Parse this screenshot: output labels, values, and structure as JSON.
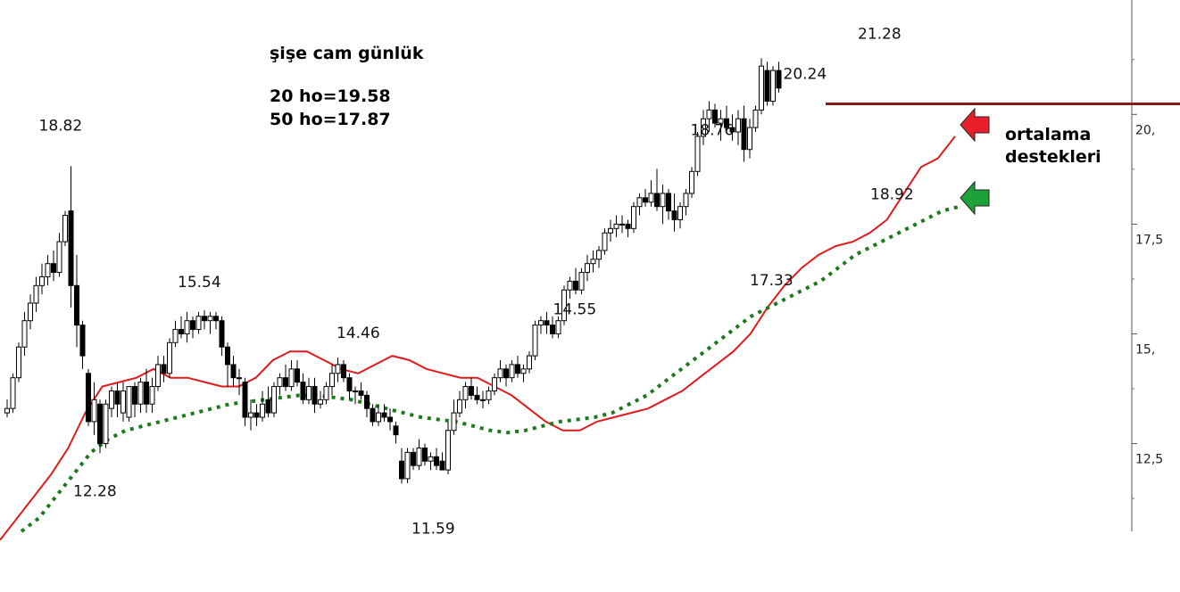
{
  "chart_data": {
    "type": "candlestick",
    "title": "şişe cam günlük",
    "annotations_top": [
      "20 ho=19.58",
      "50 ho=17.87"
    ],
    "note_lines": [
      "ortalama",
      "destekleri"
    ],
    "y_axis": {
      "side": "right",
      "ylim": [
        10.5,
        22.2
      ],
      "ticks": [
        12.5,
        15,
        17.5,
        20
      ],
      "tick_labels": [
        "12,5",
        "15,",
        "17,5",
        "20,"
      ]
    },
    "price_labels": [
      {
        "text": "18.82",
        "index": 11,
        "value": 18.82
      },
      {
        "text": "12.28",
        "index": 16,
        "value": 12.28
      },
      {
        "text": "15.54",
        "index": 34,
        "value": 15.54
      },
      {
        "text": "14.46",
        "index": 62,
        "value": 14.46
      },
      {
        "text": "11.59",
        "index": 74,
        "value": 11.59
      },
      {
        "text": "14.55",
        "index": 103,
        "value": 14.55
      },
      {
        "text": "18.76",
        "index": 127,
        "value": 18.76
      },
      {
        "text": "17.33",
        "index": 136,
        "value": 17.33
      },
      {
        "text": "20.24",
        "index": 143,
        "value": 20.24
      },
      {
        "text": "18.92",
        "index": 150,
        "value": 18.92
      },
      {
        "text": "21.28",
        "index": 154,
        "value": 21.28
      }
    ],
    "resistance_level": 20.24,
    "candles": [
      [
        13.2,
        13.5,
        13.1,
        13.3
      ],
      [
        13.3,
        14.1,
        13.2,
        14.0
      ],
      [
        14.0,
        14.8,
        13.9,
        14.7
      ],
      [
        14.7,
        15.5,
        14.5,
        15.3
      ],
      [
        15.3,
        15.9,
        15.1,
        15.7
      ],
      [
        15.7,
        16.3,
        15.5,
        16.1
      ],
      [
        16.1,
        16.6,
        15.9,
        16.3
      ],
      [
        16.3,
        16.8,
        16.1,
        16.6
      ],
      [
        16.6,
        16.9,
        16.2,
        16.4
      ],
      [
        16.4,
        17.3,
        16.3,
        17.1
      ],
      [
        17.1,
        17.8,
        17.0,
        17.7
      ],
      [
        17.8,
        18.82,
        15.6,
        16.1
      ],
      [
        16.1,
        16.8,
        14.7,
        15.2
      ],
      [
        15.2,
        15.3,
        14.2,
        14.5
      ],
      [
        14.1,
        14.2,
        12.9,
        13.0
      ],
      [
        13.0,
        13.9,
        12.7,
        13.5
      ],
      [
        13.4,
        13.5,
        12.28,
        12.5
      ],
      [
        12.5,
        13.5,
        12.4,
        13.4
      ],
      [
        13.3,
        13.8,
        13.1,
        13.7
      ],
      [
        13.7,
        13.9,
        13.1,
        13.4
      ],
      [
        13.2,
        13.9,
        13.0,
        13.7
      ],
      [
        13.1,
        13.8,
        13.0,
        13.8
      ],
      [
        13.8,
        13.9,
        13.1,
        13.4
      ],
      [
        13.4,
        14.0,
        13.2,
        13.9
      ],
      [
        13.9,
        14.2,
        13.2,
        13.4
      ],
      [
        13.4,
        14.0,
        13.2,
        13.8
      ],
      [
        13.8,
        14.5,
        13.7,
        14.3
      ],
      [
        14.3,
        14.5,
        13.9,
        14.1
      ],
      [
        14.1,
        14.9,
        14.0,
        14.8
      ],
      [
        14.8,
        15.3,
        14.7,
        15.1
      ],
      [
        15.1,
        15.4,
        14.9,
        15.0
      ],
      [
        15.0,
        15.5,
        14.8,
        15.3
      ],
      [
        15.3,
        15.4,
        14.9,
        15.1
      ],
      [
        15.1,
        15.5,
        15.0,
        15.4
      ],
      [
        15.4,
        15.54,
        15.1,
        15.3
      ],
      [
        15.3,
        15.5,
        15.0,
        15.4
      ],
      [
        15.4,
        15.5,
        15.1,
        15.3
      ],
      [
        15.3,
        15.4,
        14.5,
        14.7
      ],
      [
        14.7,
        14.8,
        13.8,
        14.3
      ],
      [
        14.3,
        14.5,
        13.8,
        14.0
      ],
      [
        14.0,
        14.2,
        13.6,
        14.0
      ],
      [
        13.9,
        14.0,
        12.9,
        13.1
      ],
      [
        13.1,
        13.5,
        12.8,
        13.2
      ],
      [
        13.2,
        13.4,
        12.9,
        13.1
      ],
      [
        13.1,
        13.7,
        13.0,
        13.4
      ],
      [
        13.5,
        13.8,
        13.1,
        13.2
      ],
      [
        13.2,
        13.9,
        13.1,
        13.8
      ],
      [
        13.8,
        14.1,
        13.6,
        14.0
      ],
      [
        14.0,
        14.3,
        13.7,
        13.8
      ],
      [
        13.8,
        14.4,
        13.7,
        14.2
      ],
      [
        14.2,
        14.4,
        13.8,
        13.9
      ],
      [
        13.9,
        14.1,
        13.4,
        13.5
      ],
      [
        13.5,
        14.0,
        13.4,
        13.8
      ],
      [
        13.8,
        14.0,
        13.2,
        13.4
      ],
      [
        13.4,
        13.7,
        13.3,
        13.5
      ],
      [
        13.5,
        13.9,
        13.4,
        13.8
      ],
      [
        13.8,
        14.3,
        13.6,
        14.1
      ],
      [
        14.1,
        14.46,
        13.9,
        14.3
      ],
      [
        14.3,
        14.4,
        13.9,
        14.0
      ],
      [
        14.0,
        14.1,
        13.5,
        13.7
      ],
      [
        13.7,
        13.8,
        13.4,
        13.7
      ],
      [
        13.7,
        13.9,
        13.5,
        13.6
      ],
      [
        13.6,
        13.7,
        13.1,
        13.3
      ],
      [
        13.3,
        13.4,
        12.9,
        13.0
      ],
      [
        13.0,
        13.4,
        12.9,
        13.2
      ],
      [
        13.2,
        13.4,
        13.0,
        13.1
      ],
      [
        13.1,
        13.3,
        12.8,
        13.0
      ],
      [
        12.9,
        13.0,
        12.5,
        12.7
      ],
      [
        12.1,
        12.4,
        11.59,
        11.7
      ],
      [
        11.7,
        12.4,
        11.6,
        12.3
      ],
      [
        12.3,
        12.4,
        11.9,
        12.0
      ],
      [
        12.0,
        12.6,
        11.9,
        12.4
      ],
      [
        12.4,
        12.5,
        12.0,
        12.1
      ],
      [
        12.1,
        12.3,
        11.9,
        12.2
      ],
      [
        12.2,
        12.4,
        11.9,
        12.0
      ],
      [
        12.1,
        12.3,
        11.9,
        11.9
      ],
      [
        11.9,
        13.0,
        11.8,
        12.8
      ],
      [
        12.8,
        13.5,
        12.7,
        13.2
      ],
      [
        13.2,
        13.7,
        13.1,
        13.5
      ],
      [
        13.5,
        13.9,
        13.3,
        13.8
      ],
      [
        13.8,
        14.0,
        13.5,
        13.6
      ],
      [
        13.6,
        13.8,
        13.4,
        13.5
      ],
      [
        13.5,
        13.7,
        13.3,
        13.5
      ],
      [
        13.5,
        13.8,
        13.4,
        13.7
      ],
      [
        13.7,
        14.1,
        13.6,
        14.0
      ],
      [
        14.0,
        14.4,
        13.9,
        14.2
      ],
      [
        14.2,
        14.3,
        13.8,
        14.0
      ],
      [
        14.0,
        14.4,
        13.9,
        14.3
      ],
      [
        14.3,
        14.5,
        14.0,
        14.1
      ],
      [
        14.1,
        14.3,
        13.9,
        14.2
      ],
      [
        14.2,
        14.6,
        14.1,
        14.5
      ],
      [
        14.5,
        15.3,
        14.4,
        15.2
      ],
      [
        15.2,
        15.4,
        15.0,
        15.3
      ],
      [
        15.3,
        15.5,
        15.0,
        15.2
      ],
      [
        15.2,
        15.4,
        14.9,
        15.0
      ],
      [
        15.0,
        15.4,
        14.9,
        15.3
      ],
      [
        15.3,
        16.1,
        15.2,
        16.0
      ],
      [
        16.0,
        16.3,
        15.8,
        16.2
      ],
      [
        16.2,
        16.5,
        15.9,
        16.0
      ],
      [
        16.0,
        16.5,
        15.9,
        16.4
      ],
      [
        16.4,
        16.8,
        16.2,
        16.6
      ],
      [
        16.6,
        16.9,
        16.4,
        16.7
      ],
      [
        16.7,
        17.0,
        16.5,
        16.9
      ],
      [
        16.9,
        17.4,
        16.8,
        17.3
      ],
      [
        17.3,
        17.6,
        17.1,
        17.4
      ],
      [
        17.4,
        17.7,
        17.2,
        17.5
      ],
      [
        17.5,
        17.7,
        17.3,
        17.5
      ],
      [
        17.5,
        17.6,
        17.2,
        17.4
      ],
      [
        17.4,
        18.0,
        17.3,
        17.9
      ],
      [
        17.9,
        18.2,
        17.7,
        18.1
      ],
      [
        18.1,
        18.3,
        17.9,
        18.0
      ],
      [
        18.0,
        18.5,
        17.9,
        18.2
      ],
      [
        18.2,
        18.76,
        17.8,
        17.9
      ],
      [
        17.9,
        18.4,
        17.5,
        18.2
      ],
      [
        18.2,
        18.3,
        17.6,
        17.8
      ],
      [
        17.8,
        18.2,
        17.33,
        17.6
      ],
      [
        17.6,
        18.0,
        17.4,
        17.9
      ],
      [
        17.9,
        18.3,
        17.7,
        18.2
      ],
      [
        18.2,
        18.8,
        18.1,
        18.7
      ],
      [
        18.7,
        19.6,
        18.6,
        19.5
      ],
      [
        19.5,
        20.1,
        19.3,
        19.9
      ],
      [
        19.9,
        20.3,
        19.6,
        20.1
      ],
      [
        20.1,
        20.24,
        19.7,
        19.8
      ],
      [
        19.8,
        20.1,
        19.4,
        19.9
      ],
      [
        19.9,
        20.2,
        19.6,
        19.7
      ],
      [
        19.7,
        20.0,
        19.4,
        19.6
      ],
      [
        19.6,
        20.1,
        19.3,
        19.9
      ],
      [
        19.9,
        20.2,
        18.92,
        19.2
      ],
      [
        19.2,
        19.9,
        19.0,
        19.7
      ],
      [
        19.7,
        20.2,
        19.6,
        20.1
      ],
      [
        20.1,
        21.28,
        20.0,
        21.1
      ],
      [
        21.0,
        21.2,
        20.2,
        20.3
      ],
      [
        20.3,
        21.1,
        20.2,
        21.0
      ],
      [
        21.0,
        21.2,
        20.5,
        20.6
      ]
    ],
    "ma20": [
      10.3,
      10.8,
      11.3,
      11.8,
      12.4,
      13.2,
      13.8,
      13.9,
      14.0,
      14.2,
      14.0,
      14.0,
      13.9,
      13.8,
      13.8,
      14.0,
      14.4,
      14.6,
      14.6,
      14.4,
      14.2,
      14.1,
      14.3,
      14.5,
      14.4,
      14.2,
      14.1,
      14.0,
      14.0,
      13.8,
      13.6,
      13.3,
      13.0,
      12.8,
      12.8,
      13.0,
      13.1,
      13.2,
      13.3,
      13.5,
      13.7,
      14.0,
      14.3,
      14.6,
      15.0,
      15.6,
      16.1,
      16.5,
      16.8,
      17.0,
      17.1,
      17.3,
      17.6,
      18.2,
      18.8,
      19.0,
      19.5
    ],
    "ma50": [
      10.5,
      10.8,
      11.3,
      11.8,
      12.3,
      12.6,
      12.8,
      12.9,
      13.0,
      13.1,
      13.2,
      13.3,
      13.4,
      13.45,
      13.5,
      13.55,
      13.6,
      13.6,
      13.55,
      13.5,
      13.4,
      13.3,
      13.2,
      13.1,
      13.05,
      13.0,
      12.9,
      12.8,
      12.75,
      12.8,
      12.9,
      13.0,
      13.05,
      13.1,
      13.2,
      13.4,
      13.6,
      13.9,
      14.2,
      14.5,
      14.8,
      15.1,
      15.4,
      15.6,
      15.8,
      16.0,
      16.2,
      16.5,
      16.8,
      17.0,
      17.2,
      17.4,
      17.6,
      17.8,
      17.9
    ],
    "colors": {
      "bull_fill": "#ffffff",
      "bear_fill": "#000000",
      "ma20": "#e01b1b",
      "ma50": "#1b7a1b",
      "resistance": "#8b1a1a",
      "arrow_red": "#e81f2a",
      "arrow_green": "#1fa13a"
    }
  }
}
